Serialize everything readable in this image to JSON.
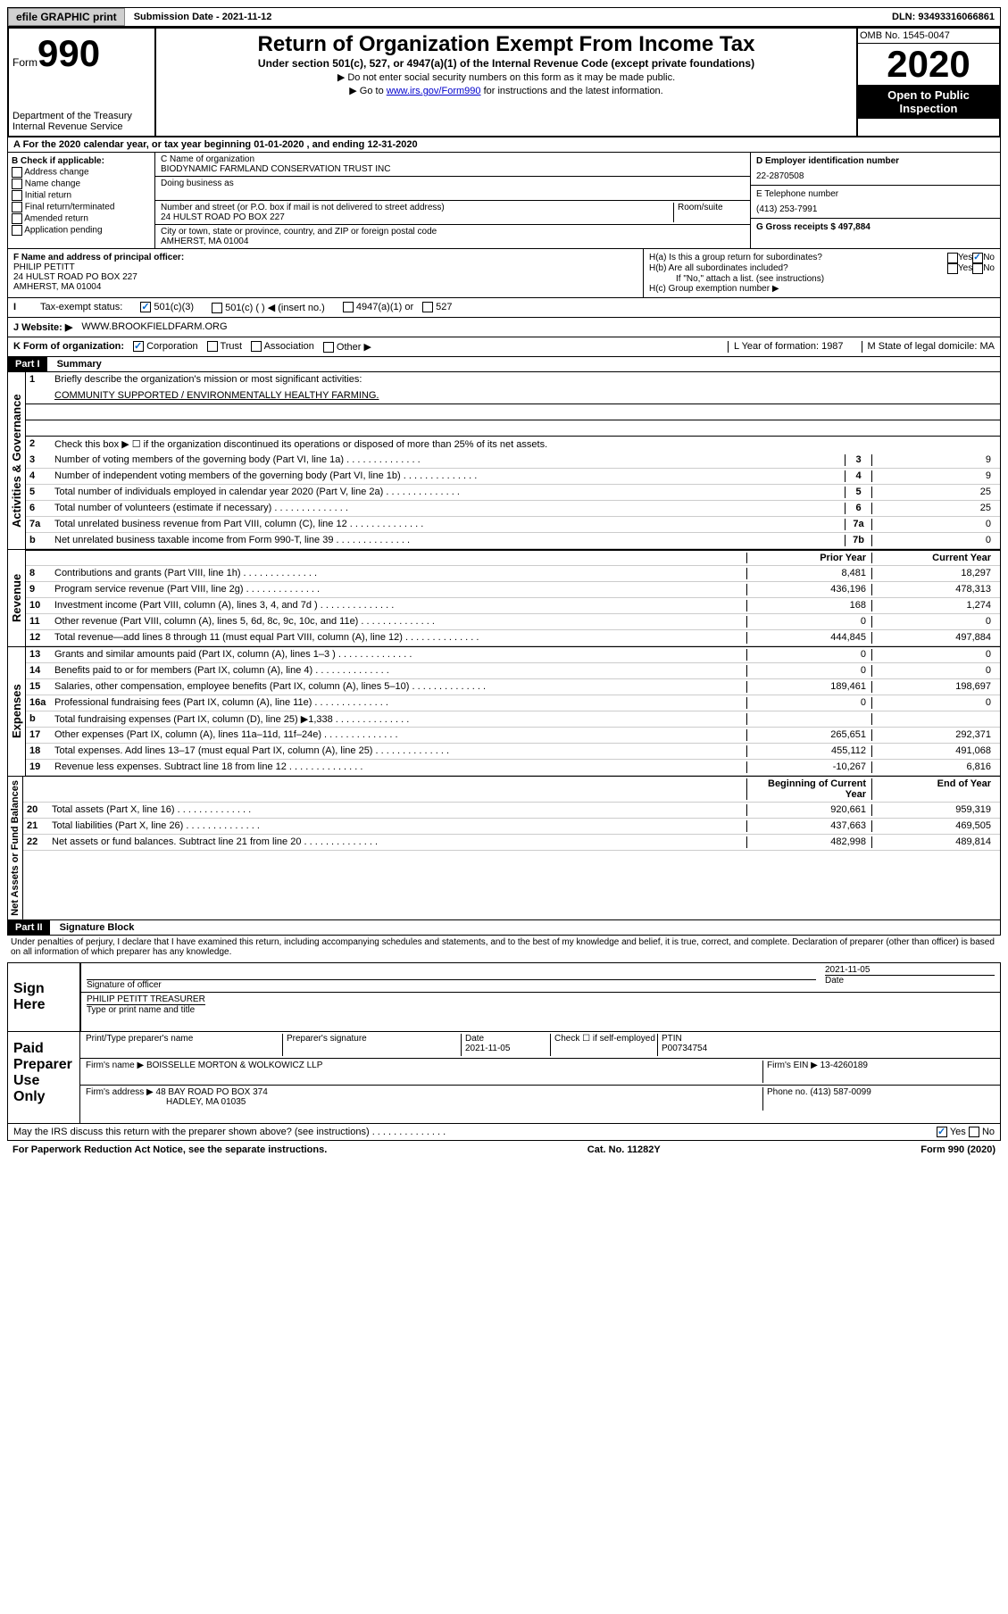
{
  "topbar": {
    "btn1": "efile GRAPHIC print",
    "sub_label": "Submission Date - 2021-11-12",
    "dln": "DLN: 93493316066861"
  },
  "header": {
    "form_word": "Form",
    "form_num": "990",
    "title": "Return of Organization Exempt From Income Tax",
    "subtitle": "Under section 501(c), 527, or 4947(a)(1) of the Internal Revenue Code (except private foundations)",
    "note1": "▶ Do not enter social security numbers on this form as it may be made public.",
    "note2_pre": "▶ Go to ",
    "note2_link": "www.irs.gov/Form990",
    "note2_post": " for instructions and the latest information.",
    "dept": "Department of the Treasury\nInternal Revenue Service",
    "omb": "OMB No. 1545-0047",
    "year": "2020",
    "inspect": "Open to Public Inspection"
  },
  "row_a": "A For the 2020 calendar year, or tax year beginning 01-01-2020    , and ending 12-31-2020",
  "col_b": {
    "hdr": "B Check if applicable:",
    "c1": "Address change",
    "c2": "Name change",
    "c3": "Initial return",
    "c4": "Final return/terminated",
    "c5": "Amended return",
    "c6": "Application pending"
  },
  "col_c": {
    "name_lbl": "C Name of organization",
    "name": "BIODYNAMIC FARMLAND CONSERVATION TRUST INC",
    "dba_lbl": "Doing business as",
    "addr_lbl": "Number and street (or P.O. box if mail is not delivered to street address)",
    "room_lbl": "Room/suite",
    "addr": "24 HULST ROAD PO BOX 227",
    "city_lbl": "City or town, state or province, country, and ZIP or foreign postal code",
    "city": "AMHERST, MA  01004"
  },
  "col_d": {
    "ein_lbl": "D Employer identification number",
    "ein": "22-2870508",
    "tel_lbl": "E Telephone number",
    "tel": "(413) 253-7991",
    "gross_lbl": "G Gross receipts $ 497,884"
  },
  "col_f": {
    "lbl": "F  Name and address of principal officer:",
    "name": "PHILIP PETITT",
    "addr": "24 HULST ROAD PO BOX 227",
    "city": "AMHERST, MA  01004"
  },
  "col_h": {
    "ha": "H(a)  Is this a group return for subordinates?",
    "hb": "H(b)  Are all subordinates included?",
    "hb_note": "If \"No,\" attach a list. (see instructions)",
    "hc": "H(c)  Group exemption number ▶",
    "yes": "Yes",
    "no": "No"
  },
  "row_i": {
    "lbl": "Tax-exempt status:",
    "o1": "501(c)(3)",
    "o2": "501(c) (  ) ◀ (insert no.)",
    "o3": "4947(a)(1) or",
    "o4": "527"
  },
  "row_j": {
    "lbl": "J   Website: ▶",
    "val": "WWW.BROOKFIELDFARM.ORG"
  },
  "row_k": {
    "lbl": "K Form of organization:",
    "o1": "Corporation",
    "o2": "Trust",
    "o3": "Association",
    "o4": "Other ▶",
    "l": "L Year of formation: 1987",
    "m": "M State of legal domicile: MA"
  },
  "part1": {
    "hdr": "Part I",
    "title": "Summary",
    "line1_lbl": "Briefly describe the organization's mission or most significant activities:",
    "line1_val": "COMMUNITY SUPPORTED / ENVIRONMENTALLY HEALTHY FARMING.",
    "line2": "Check this box ▶ ☐  if the organization discontinued its operations or disposed of more than 25% of its net assets.",
    "lines_gov": [
      {
        "n": "3",
        "d": "Number of voting members of the governing body (Part VI, line 1a)",
        "b": "3",
        "v": "9"
      },
      {
        "n": "4",
        "d": "Number of independent voting members of the governing body (Part VI, line 1b)",
        "b": "4",
        "v": "9"
      },
      {
        "n": "5",
        "d": "Total number of individuals employed in calendar year 2020 (Part V, line 2a)",
        "b": "5",
        "v": "25"
      },
      {
        "n": "6",
        "d": "Total number of volunteers (estimate if necessary)",
        "b": "6",
        "v": "25"
      },
      {
        "n": "7a",
        "d": "Total unrelated business revenue from Part VIII, column (C), line 12",
        "b": "7a",
        "v": "0"
      },
      {
        "n": "b",
        "d": "Net unrelated business taxable income from Form 990-T, line 39",
        "b": "7b",
        "v": "0"
      }
    ],
    "col_prior": "Prior Year",
    "col_current": "Current Year",
    "lines_rev": [
      {
        "n": "8",
        "d": "Contributions and grants (Part VIII, line 1h)",
        "p": "8,481",
        "c": "18,297"
      },
      {
        "n": "9",
        "d": "Program service revenue (Part VIII, line 2g)",
        "p": "436,196",
        "c": "478,313"
      },
      {
        "n": "10",
        "d": "Investment income (Part VIII, column (A), lines 3, 4, and 7d )",
        "p": "168",
        "c": "1,274"
      },
      {
        "n": "11",
        "d": "Other revenue (Part VIII, column (A), lines 5, 6d, 8c, 9c, 10c, and 11e)",
        "p": "0",
        "c": "0"
      },
      {
        "n": "12",
        "d": "Total revenue—add lines 8 through 11 (must equal Part VIII, column (A), line 12)",
        "p": "444,845",
        "c": "497,884"
      }
    ],
    "lines_exp": [
      {
        "n": "13",
        "d": "Grants and similar amounts paid (Part IX, column (A), lines 1–3 )",
        "p": "0",
        "c": "0"
      },
      {
        "n": "14",
        "d": "Benefits paid to or for members (Part IX, column (A), line 4)",
        "p": "0",
        "c": "0"
      },
      {
        "n": "15",
        "d": "Salaries, other compensation, employee benefits (Part IX, column (A), lines 5–10)",
        "p": "189,461",
        "c": "198,697"
      },
      {
        "n": "16a",
        "d": "Professional fundraising fees (Part IX, column (A), line 11e)",
        "p": "0",
        "c": "0"
      },
      {
        "n": "b",
        "d": "Total fundraising expenses (Part IX, column (D), line 25) ▶1,338",
        "p": "",
        "c": ""
      },
      {
        "n": "17",
        "d": "Other expenses (Part IX, column (A), lines 11a–11d, 11f–24e)",
        "p": "265,651",
        "c": "292,371"
      },
      {
        "n": "18",
        "d": "Total expenses. Add lines 13–17 (must equal Part IX, column (A), line 25)",
        "p": "455,112",
        "c": "491,068"
      },
      {
        "n": "19",
        "d": "Revenue less expenses. Subtract line 18 from line 12",
        "p": "-10,267",
        "c": "6,816"
      }
    ],
    "col_begin": "Beginning of Current Year",
    "col_end": "End of Year",
    "lines_net": [
      {
        "n": "20",
        "d": "Total assets (Part X, line 16)",
        "p": "920,661",
        "c": "959,319"
      },
      {
        "n": "21",
        "d": "Total liabilities (Part X, line 26)",
        "p": "437,663",
        "c": "469,505"
      },
      {
        "n": "22",
        "d": "Net assets or fund balances. Subtract line 21 from line 20",
        "p": "482,998",
        "c": "489,814"
      }
    ],
    "vert_gov": "Activities & Governance",
    "vert_rev": "Revenue",
    "vert_exp": "Expenses",
    "vert_net": "Net Assets or Fund Balances"
  },
  "part2": {
    "hdr": "Part II",
    "title": "Signature Block",
    "perjury": "Under penalties of perjury, I declare that I have examined this return, including accompanying schedules and statements, and to the best of my knowledge and belief, it is true, correct, and complete. Declaration of preparer (other than officer) is based on all information of which preparer has any knowledge.",
    "sign_here": "Sign Here",
    "sig_officer": "Signature of officer",
    "sig_date": "2021-11-05",
    "date_lbl": "Date",
    "sig_name": "PHILIP PETITT TREASURER",
    "sig_name_lbl": "Type or print name and title",
    "paid_prep": "Paid Preparer Use Only",
    "prep_name_lbl": "Print/Type preparer's name",
    "prep_sig_lbl": "Preparer's signature",
    "prep_date_lbl": "Date",
    "prep_date": "2021-11-05",
    "prep_check_lbl": "Check ☐ if self-employed",
    "ptin_lbl": "PTIN",
    "ptin": "P00734754",
    "firm_name_lbl": "Firm's name     ▶",
    "firm_name": "BOISSELLE MORTON & WOLKOWICZ LLP",
    "firm_ein_lbl": "Firm's EIN ▶",
    "firm_ein": "13-4260189",
    "firm_addr_lbl": "Firm's address ▶",
    "firm_addr": "48 BAY ROAD PO BOX 374",
    "firm_city": "HADLEY, MA  01035",
    "phone_lbl": "Phone no.",
    "phone": "(413) 587-0099",
    "discuss": "May the IRS discuss this return with the preparer shown above? (see instructions)",
    "yes": "Yes",
    "no": "No"
  },
  "footer": {
    "left": "For Paperwork Reduction Act Notice, see the separate instructions.",
    "mid": "Cat. No. 11282Y",
    "right": "Form 990 (2020)"
  }
}
